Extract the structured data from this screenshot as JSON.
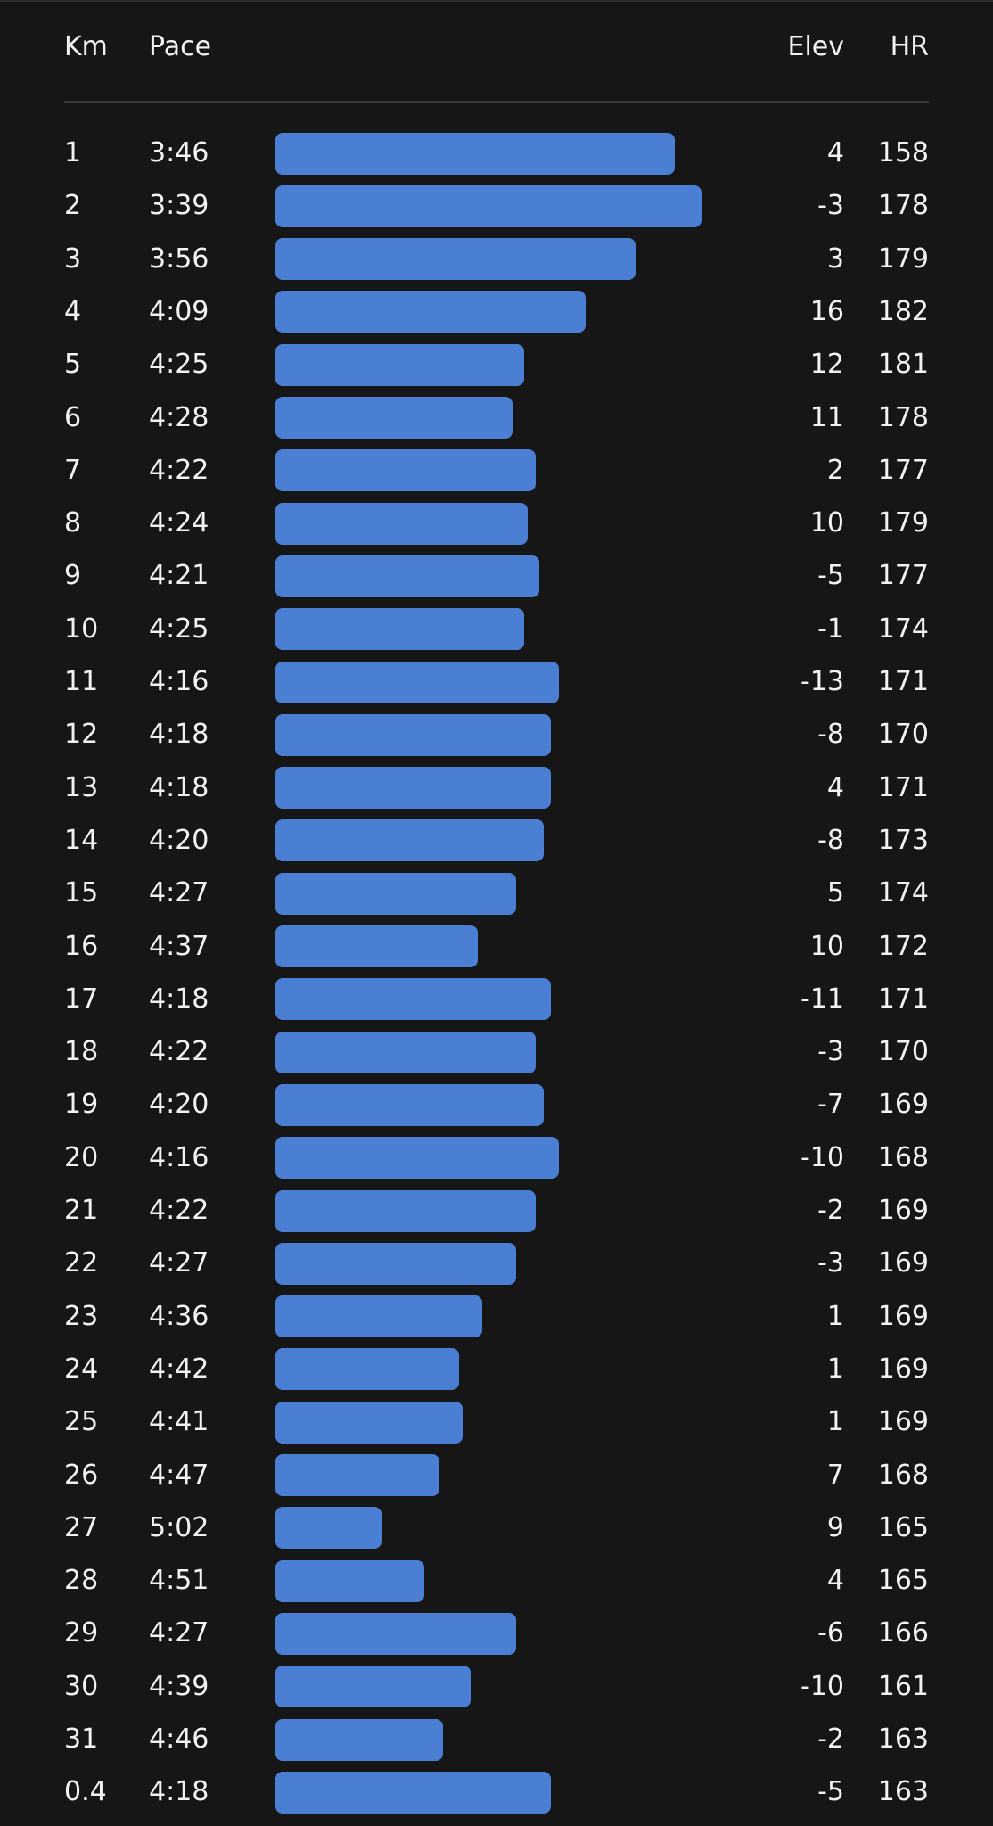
{
  "header": {
    "km": "Km",
    "pace": "Pace",
    "elev": "Elev",
    "hr": "HR"
  },
  "rows": [
    [
      "1",
      "3:46",
      "4",
      "158"
    ],
    [
      "2",
      "3:39",
      "-3",
      "178"
    ],
    [
      "3",
      "3:56",
      "3",
      "179"
    ],
    [
      "4",
      "4:09",
      "16",
      "182"
    ],
    [
      "5",
      "4:25",
      "12",
      "181"
    ],
    [
      "6",
      "4:28",
      "11",
      "178"
    ],
    [
      "7",
      "4:22",
      "2",
      "177"
    ],
    [
      "8",
      "4:24",
      "10",
      "179"
    ],
    [
      "9",
      "4:21",
      "-5",
      "177"
    ],
    [
      "10",
      "4:25",
      "-1",
      "174"
    ],
    [
      "11",
      "4:16",
      "-13",
      "171"
    ],
    [
      "12",
      "4:18",
      "-8",
      "170"
    ],
    [
      "13",
      "4:18",
      "4",
      "171"
    ],
    [
      "14",
      "4:20",
      "-8",
      "173"
    ],
    [
      "15",
      "4:27",
      "5",
      "174"
    ],
    [
      "16",
      "4:37",
      "10",
      "172"
    ],
    [
      "17",
      "4:18",
      "-11",
      "171"
    ],
    [
      "18",
      "4:22",
      "-3",
      "170"
    ],
    [
      "19",
      "4:20",
      "-7",
      "169"
    ],
    [
      "20",
      "4:16",
      "-10",
      "168"
    ],
    [
      "21",
      "4:22",
      "-2",
      "169"
    ],
    [
      "22",
      "4:27",
      "-3",
      "169"
    ],
    [
      "23",
      "4:36",
      "1",
      "169"
    ],
    [
      "24",
      "4:42",
      "1",
      "169"
    ],
    [
      "25",
      "4:41",
      "1",
      "169"
    ],
    [
      "26",
      "4:47",
      "7",
      "168"
    ],
    [
      "27",
      "5:02",
      "9",
      "165"
    ],
    [
      "28",
      "4:51",
      "4",
      "165"
    ],
    [
      "29",
      "4:27",
      "-6",
      "166"
    ],
    [
      "30",
      "4:39",
      "-10",
      "161"
    ],
    [
      "31",
      "4:46",
      "-2",
      "163"
    ],
    [
      "0.4",
      "4:18",
      "-5",
      "163"
    ]
  ]
}
